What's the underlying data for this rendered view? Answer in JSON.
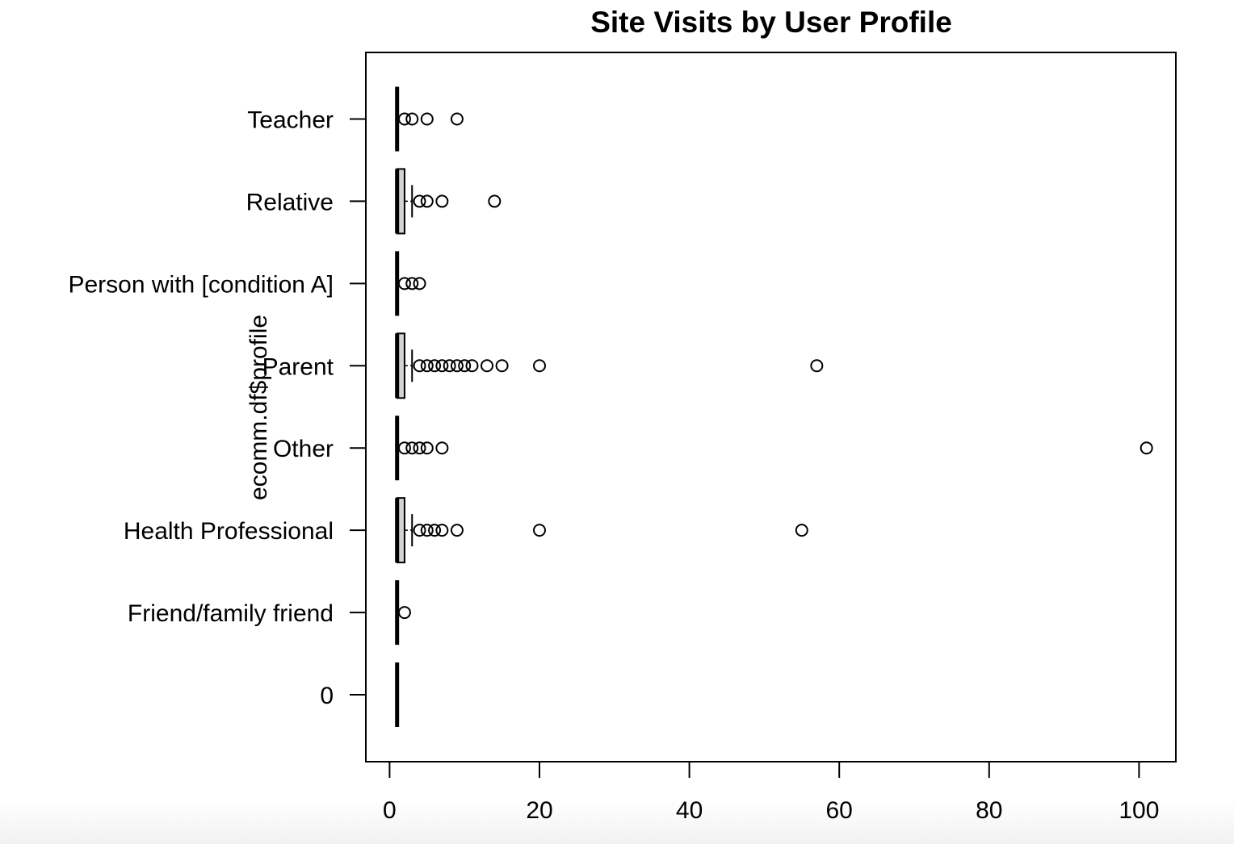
{
  "chart_data": {
    "type": "boxplot",
    "orientation": "horizontal",
    "title": "Site Visits by User Profile",
    "xlabel": "",
    "ylabel": "ecomm.df$profile",
    "xlim": [
      -7.9,
      263.2
    ],
    "x_ticks": [
      0,
      20,
      40,
      60,
      80,
      100
    ],
    "grid": false,
    "legend": "none",
    "categories": [
      "0",
      "Friend/family friend",
      "Health Professional",
      "Other",
      "Parent",
      "Person with [condition A]",
      "Relative",
      "Teacher"
    ],
    "boxes": [
      {
        "category": "0",
        "min": 1,
        "q1": 1,
        "median": 1,
        "q3": 1,
        "max": 1,
        "outliers": []
      },
      {
        "category": "Friend/family friend",
        "min": 1,
        "q1": 1,
        "median": 1,
        "q3": 1,
        "max": 1,
        "outliers": [
          2
        ]
      },
      {
        "category": "Health Professional",
        "min": 1,
        "q1": 1,
        "median": 1,
        "q3": 2,
        "max": 3,
        "outliers": [
          4,
          5,
          6,
          7,
          9,
          20,
          55
        ]
      },
      {
        "category": "Other",
        "min": 1,
        "q1": 1,
        "median": 1,
        "q3": 1,
        "max": 1,
        "outliers": [
          2,
          3,
          4,
          5,
          7,
          101
        ]
      },
      {
        "category": "Parent",
        "min": 1,
        "q1": 1,
        "median": 1,
        "q3": 2,
        "max": 3,
        "outliers": [
          4,
          5,
          6,
          7,
          8,
          9,
          10,
          11,
          13,
          15,
          20,
          57
        ]
      },
      {
        "category": "Person with [condition A]",
        "min": 1,
        "q1": 1,
        "median": 1,
        "q3": 1,
        "max": 1,
        "outliers": [
          2,
          3,
          4
        ]
      },
      {
        "category": "Relative",
        "min": 1,
        "q1": 1,
        "median": 1,
        "q3": 2,
        "max": 3,
        "outliers": [
          4,
          5,
          7,
          14
        ]
      },
      {
        "category": "Teacher",
        "min": 1,
        "q1": 1,
        "median": 1,
        "q3": 1,
        "max": 1,
        "outliers": [
          2,
          3,
          5,
          9
        ]
      }
    ],
    "colors": {
      "box_fill": "#d3d3d3",
      "stroke": "#000000",
      "background": "#ffffff"
    }
  }
}
